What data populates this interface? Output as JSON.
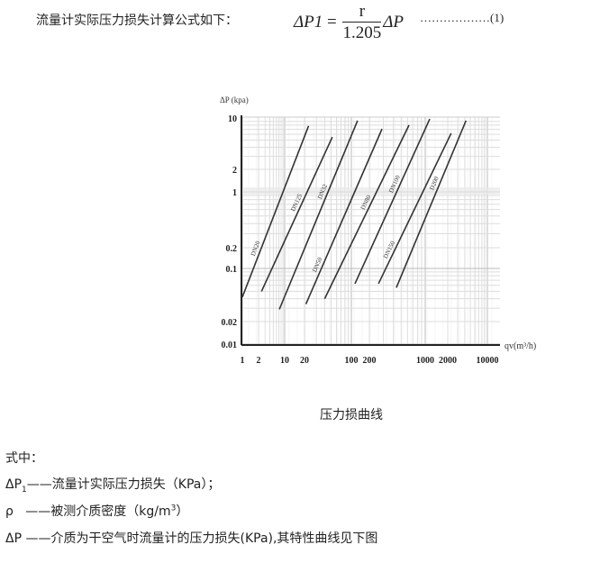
{
  "intro": "流量计实际压力损失计算公式如下：",
  "formula": {
    "lhs": "ΔP1",
    "eq": "=",
    "numerator": "r",
    "denominator": "1.205",
    "rhs": "ΔP",
    "number": "………………(1)"
  },
  "chart_data": {
    "type": "line",
    "title": "",
    "ylabel": "ΔP (kpa)",
    "xlabel": "qv(m³/h)",
    "x_ticks": [
      "1",
      "2",
      "10",
      "20",
      "100",
      "200",
      "1000",
      "2000",
      "10000"
    ],
    "y_ticks": [
      "10",
      "2",
      "1",
      "0.2",
      "0.1",
      "0.02",
      "0.01"
    ],
    "xlim": [
      1,
      10000
    ],
    "ylim": [
      0.01,
      10
    ],
    "x_scale": "log",
    "y_scale": "log",
    "grid": true,
    "series": [
      {
        "name": "DN20",
        "x": [
          1,
          23
        ],
        "y": [
          0.042,
          7.8
        ]
      },
      {
        "name": "DN125",
        "x": [
          2.4,
          52
        ],
        "y": [
          0.05,
          5.5
        ]
      },
      {
        "name": "DN32",
        "x": [
          7.2,
          127
        ],
        "y": [
          0.029,
          9.2
        ]
      },
      {
        "name": "DN50",
        "x": [
          21,
          288
        ],
        "y": [
          0.034,
          7.1
        ]
      },
      {
        "name": "DN80",
        "x": [
          40,
          627
        ],
        "y": [
          0.04,
          8.0
        ]
      },
      {
        "name": "DN100",
        "x": [
          115,
          1150
        ],
        "y": [
          0.063,
          9.7
        ]
      },
      {
        "name": "DN150",
        "x": [
          260,
          2300
        ],
        "y": [
          0.063,
          6.2
        ]
      },
      {
        "name": "D200",
        "x": [
          435,
          4200
        ],
        "y": [
          0.056,
          9.2
        ]
      }
    ]
  },
  "caption": "压力损曲线",
  "definitions": {
    "heading": "式中：",
    "p1_symbol": "ΔP",
    "p1_sub": "1",
    "p1_text": "——流量计实际压力损失（KPa）；",
    "rho_symbol": "ρ",
    "rho_text": "——被测介质密度（kg/m",
    "rho_sup": "3",
    "rho_end": "）",
    "dp_symbol": "ΔP",
    "dp_text": "——介质为干空气时流量计的压力损失(KPa),其特性曲线见下图"
  }
}
